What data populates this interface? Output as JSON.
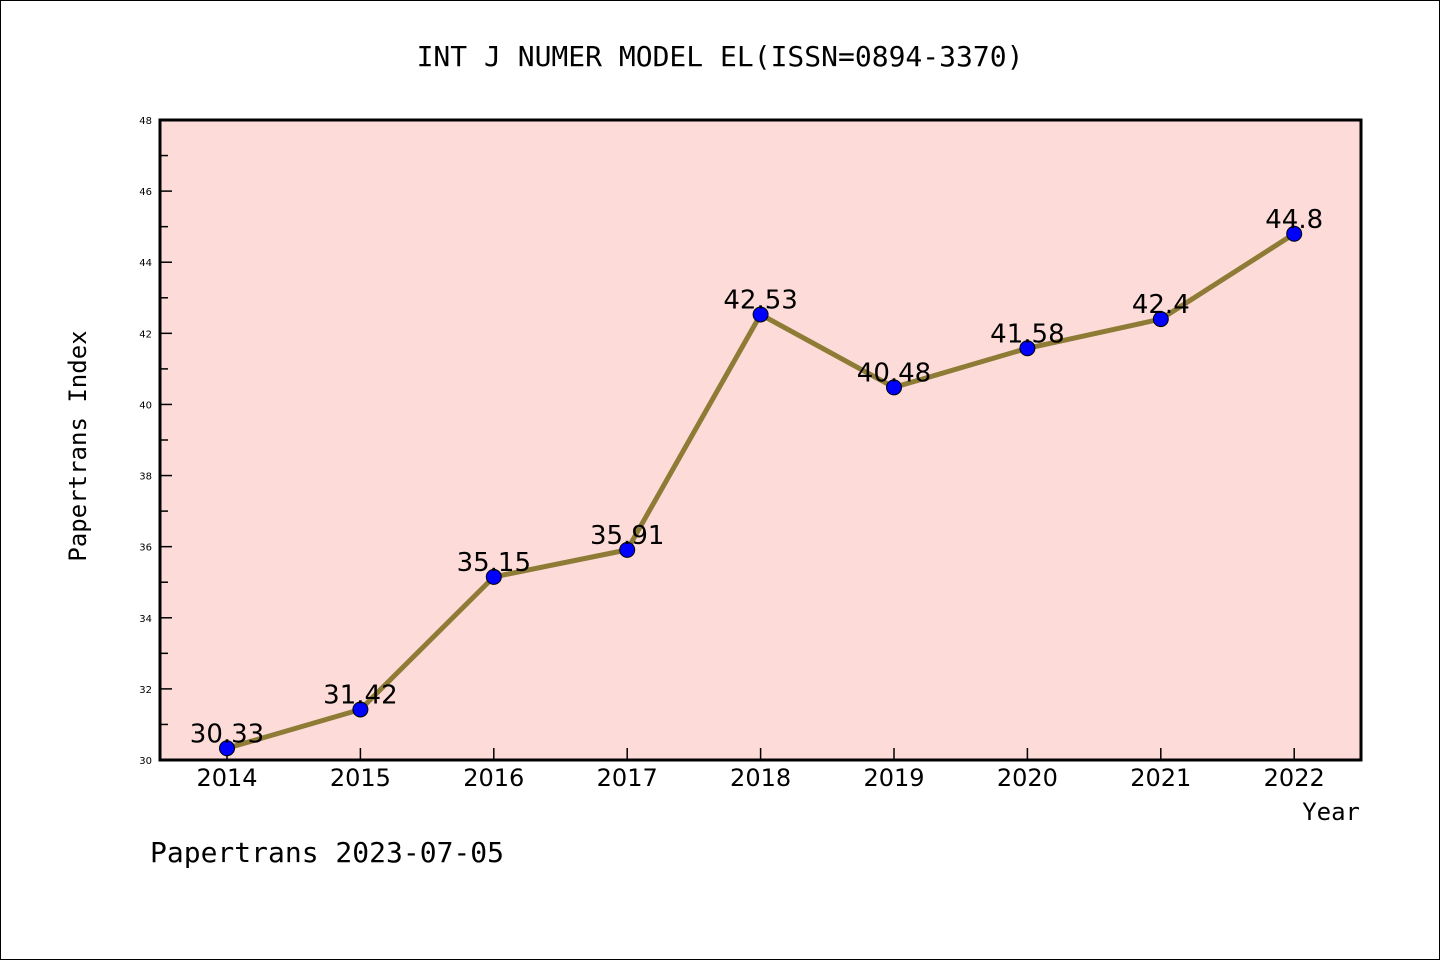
{
  "chart_data": {
    "type": "line",
    "title": "INT J NUMER MODEL EL(ISSN=0894-3370)",
    "xlabel": "Year",
    "ylabel": "Papertrans Index",
    "categories": [
      "2014",
      "2015",
      "2016",
      "2017",
      "2018",
      "2019",
      "2020",
      "2021",
      "2022"
    ],
    "values": [
      30.33,
      31.42,
      35.15,
      35.91,
      42.53,
      40.48,
      41.58,
      42.4,
      44.8
    ],
    "data_labels": [
      "30.33",
      "31.42",
      "35.15",
      "35.91",
      "42.53",
      "40.48",
      "41.58",
      "42.4",
      "44.8"
    ],
    "ylim": [
      30,
      48
    ],
    "yticks": [
      "30",
      "32",
      "34",
      "36",
      "38",
      "40",
      "42",
      "44",
      "46",
      "48"
    ],
    "grid": false,
    "colors": {
      "background": "#FDDBD8",
      "line": "#8E7B35",
      "marker": "#0000FF"
    }
  },
  "footer": "Papertrans 2023-07-05"
}
